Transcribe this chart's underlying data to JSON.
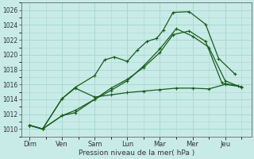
{
  "xlabel": "Pression niveau de la mer( hPa )",
  "bg_color": "#c8ebe8",
  "line_color": "#1a5c1a",
  "grid_color": "#a8d8d0",
  "ylim": [
    1009,
    1027
  ],
  "yticks": [
    1010,
    1012,
    1014,
    1016,
    1018,
    1020,
    1022,
    1024,
    1026
  ],
  "x_labels": [
    "Dim",
    "Ven",
    "Sam",
    "Lun",
    "Mar",
    "Mer",
    "Jeu"
  ],
  "day_x": [
    0,
    1,
    2,
    3,
    4,
    5,
    6
  ],
  "lines": [
    {
      "x": [
        0.0,
        0.4,
        1.0,
        1.4,
        2.0,
        2.3,
        2.6,
        3.0,
        3.3,
        3.6,
        3.9,
        4.1,
        4.4,
        4.9,
        5.4,
        5.8,
        6.3
      ],
      "y": [
        1010.5,
        1010.0,
        1014.1,
        1015.6,
        1017.2,
        1019.3,
        1019.7,
        1019.1,
        1020.6,
        1021.8,
        1022.2,
        1023.3,
        1025.7,
        1025.8,
        1024.1,
        1019.5,
        1017.4
      ]
    },
    {
      "x": [
        0.0,
        0.4,
        1.0,
        1.4,
        2.0,
        2.5,
        3.0,
        3.5,
        4.0,
        4.4,
        4.9,
        5.4,
        5.9,
        6.4
      ],
      "y": [
        1010.5,
        1010.0,
        1011.8,
        1012.5,
        1014.0,
        1015.5,
        1016.7,
        1018.3,
        1020.3,
        1022.7,
        1023.2,
        1021.8,
        1016.2,
        1015.8
      ]
    },
    {
      "x": [
        0.0,
        0.4,
        1.0,
        1.4,
        2.0,
        2.5,
        3.0,
        3.5,
        4.0,
        4.5,
        5.0,
        5.5,
        6.0,
        6.5
      ],
      "y": [
        1010.5,
        1010.0,
        1011.8,
        1012.2,
        1014.0,
        1015.2,
        1016.5,
        1018.5,
        1020.8,
        1023.5,
        1022.5,
        1021.0,
        1016.5,
        1015.6
      ]
    },
    {
      "x": [
        0.0,
        0.4,
        1.0,
        1.4,
        2.0,
        2.5,
        3.0,
        3.5,
        4.0,
        4.5,
        5.0,
        5.5,
        6.0,
        6.5
      ],
      "y": [
        1010.5,
        1010.0,
        1014.1,
        1015.5,
        1014.3,
        1014.6,
        1014.9,
        1015.1,
        1015.3,
        1015.5,
        1015.5,
        1015.4,
        1016.0,
        1015.7
      ]
    }
  ]
}
